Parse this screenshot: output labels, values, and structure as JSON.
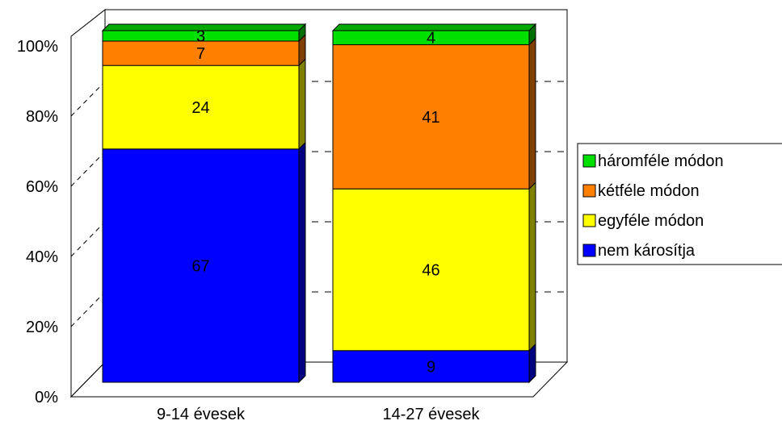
{
  "chart_data": {
    "type": "stacked-bar-100-3d",
    "categories": [
      "9-14 évesek",
      "14-27 évesek"
    ],
    "series": [
      {
        "name": "nem károsítja",
        "values": [
          67,
          9
        ],
        "color": "#0000ff"
      },
      {
        "name": "egyféle módon",
        "values": [
          24,
          46
        ],
        "color": "#ffff00"
      },
      {
        "name": "kétféle módon",
        "values": [
          7,
          41
        ],
        "color": "#ff8000"
      },
      {
        "name": "háromféle módon",
        "values": [
          3,
          4
        ],
        "color": "#00e000"
      }
    ],
    "y_ticks": [
      "0%",
      "20%",
      "40%",
      "60%",
      "80%",
      "100%"
    ],
    "ylim": [
      0,
      100
    ],
    "grid": true,
    "legend_position": "right",
    "legend_order": [
      "háromféle módon",
      "kétféle módon",
      "egyféle módon",
      "nem károsítja"
    ]
  }
}
